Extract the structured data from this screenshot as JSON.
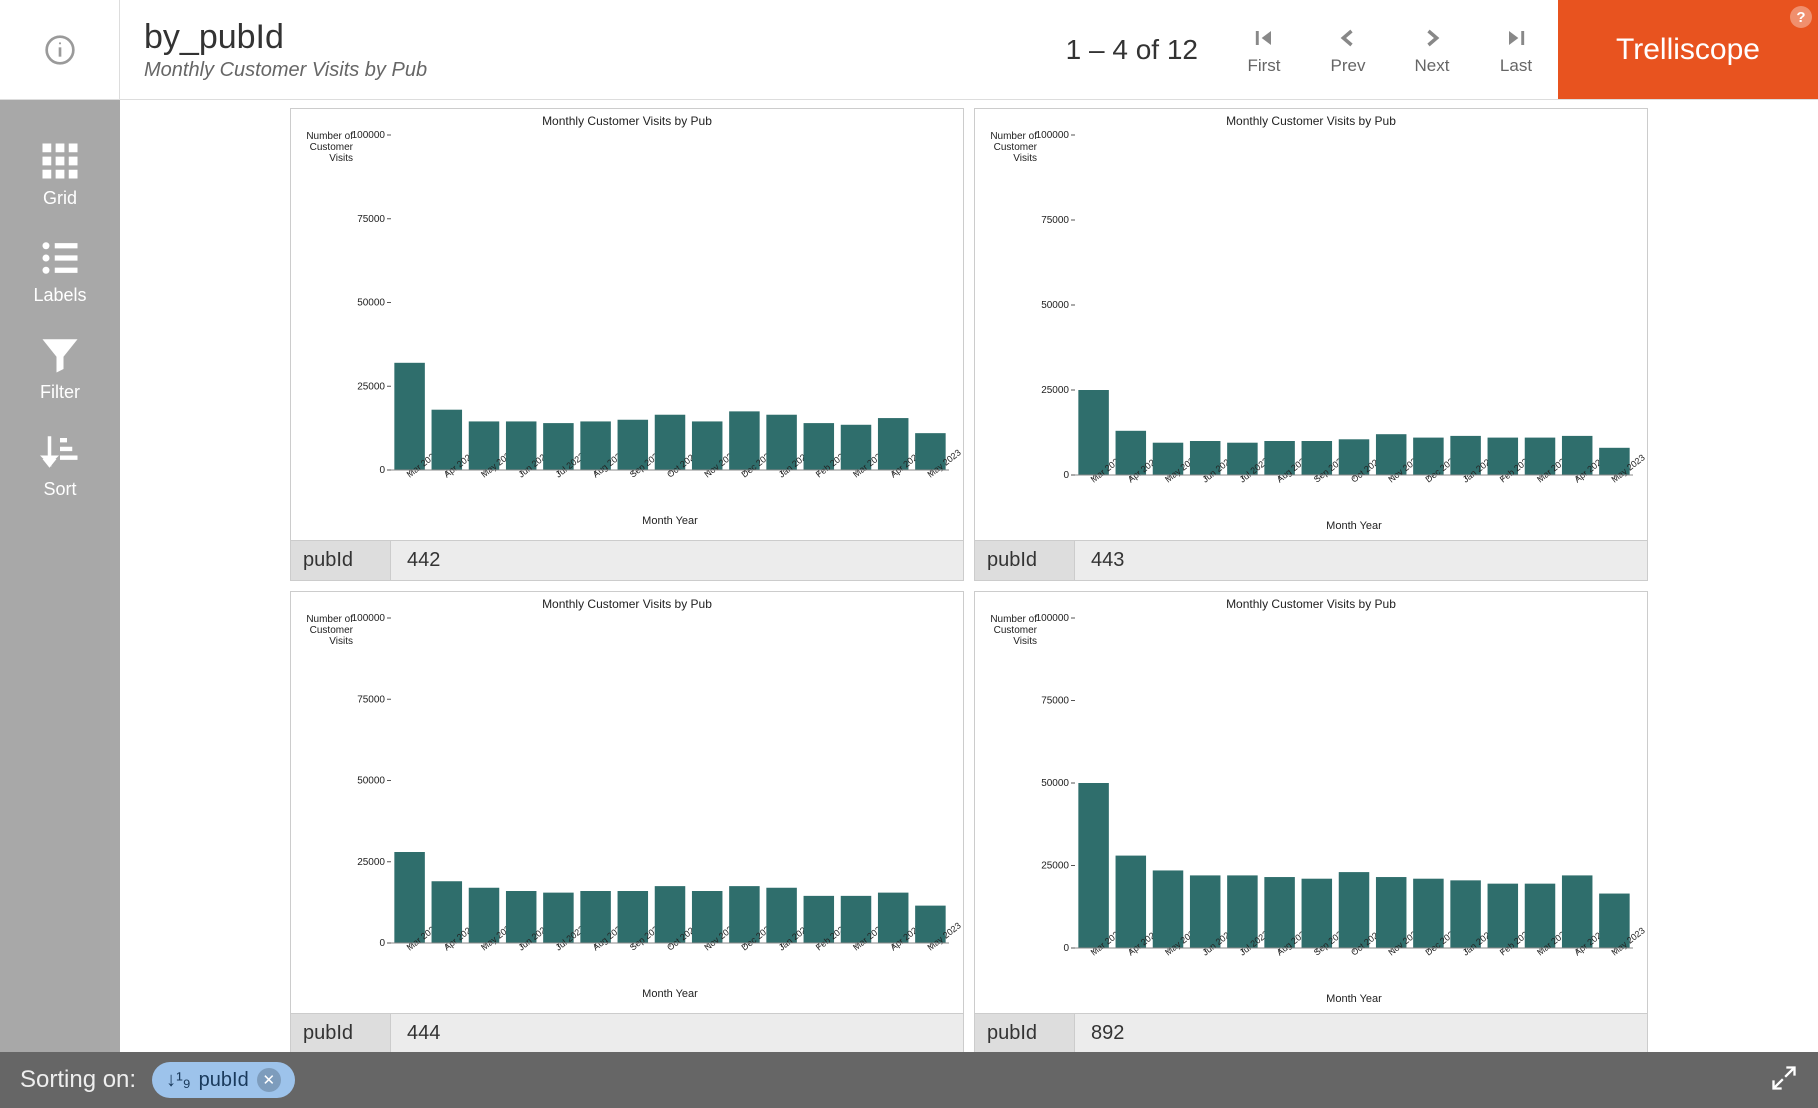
{
  "header": {
    "title": "by_pubId",
    "subtitle": "Monthly Customer Visits by Pub",
    "pager_range": "1 – 4 of 12",
    "pager_first": "First",
    "pager_prev": "Prev",
    "pager_next": "Next",
    "pager_last": "Last",
    "brand": "Trelliscope"
  },
  "sidebar": {
    "grid": "Grid",
    "labels": "Labels",
    "filter": "Filter",
    "sort": "Sort"
  },
  "status": {
    "label": "Sorting on:",
    "chip_icon": "↓¹₉",
    "chip_text": "pubId"
  },
  "chart_common": {
    "title": "Monthly Customer Visits by Pub",
    "y_axis_label_l1": "Number of",
    "y_axis_label_l2": "Customer",
    "y_axis_label_l3": "Visits",
    "x_axis_label": "Month Year",
    "ylim": [
      0,
      100000
    ],
    "yticks": [
      0,
      25000,
      50000,
      75000,
      100000
    ],
    "categories": [
      "Mar 2022",
      "Apr 2022",
      "May 2022",
      "Jun 2022",
      "Jul 2022",
      "Aug 2022",
      "Sep 2022",
      "Oct 2022",
      "Nov 2022",
      "Dec 2022",
      "Jan 2023",
      "Feb 2023",
      "Mar 2023",
      "Apr 2023",
      "May 2023"
    ],
    "bar_color": "#2f6e6c",
    "background": "#ffffff"
  },
  "panels": [
    {
      "footer_label": "pubId",
      "footer_value": "442",
      "values": [
        32000,
        18000,
        14500,
        14500,
        14000,
        14500,
        15000,
        16500,
        14500,
        17500,
        16500,
        14000,
        13500,
        15500,
        11000
      ]
    },
    {
      "footer_label": "pubId",
      "footer_value": "443",
      "values": [
        25000,
        13000,
        9500,
        10000,
        9500,
        10000,
        10000,
        10500,
        12000,
        11000,
        11500,
        11000,
        11000,
        11500,
        8000
      ]
    },
    {
      "footer_label": "pubId",
      "footer_value": "444",
      "values": [
        28000,
        19000,
        17000,
        16000,
        15500,
        16000,
        16000,
        17500,
        16000,
        17500,
        17000,
        14500,
        14500,
        15500,
        11500
      ]
    },
    {
      "footer_label": "pubId",
      "footer_value": "892",
      "values": [
        50000,
        28000,
        23500,
        22000,
        22000,
        21500,
        21000,
        23000,
        21500,
        21000,
        20500,
        19500,
        19500,
        22000,
        16500
      ]
    }
  ]
}
